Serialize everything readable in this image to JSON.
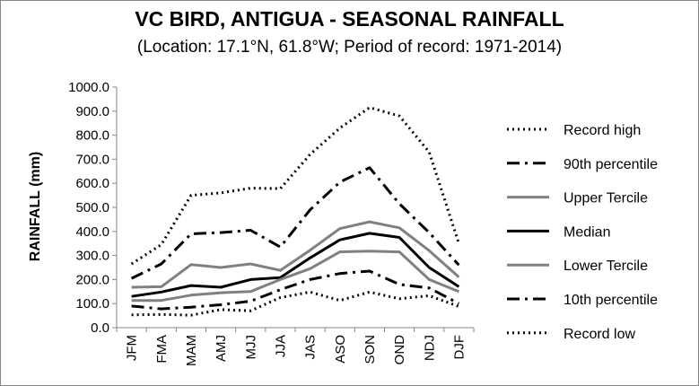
{
  "chart_data": {
    "type": "line",
    "title": "VC BIRD, ANTIGUA - SEASONAL RAINFALL",
    "subtitle": "(Location: 17.1°N, 61.8°W; Period of record: 1971-2014)",
    "ylabel": "RAINFALL (mm)",
    "xlabel": "",
    "ylim": [
      0,
      1000
    ],
    "yticks": [
      "0.0",
      "100.0",
      "200.0",
      "300.0",
      "400.0",
      "500.0",
      "600.0",
      "700.0",
      "800.0",
      "900.0",
      "1000.0"
    ],
    "categories": [
      "JFM",
      "FMA",
      "MAM",
      "AMJ",
      "MJJ",
      "JJA",
      "JAS",
      "ASO",
      "SON",
      "OND",
      "NDJ",
      "DJF"
    ],
    "grid": false,
    "legend_position": "right",
    "series": [
      {
        "name": "Record high",
        "color": "#000000",
        "style": "dotted",
        "width": 3,
        "values": [
          265,
          345,
          550,
          560,
          580,
          578,
          720,
          830,
          915,
          880,
          730,
          350
        ]
      },
      {
        "name": "90th percentile",
        "color": "#000000",
        "style": "dashdot",
        "width": 3,
        "values": [
          205,
          265,
          390,
          395,
          405,
          335,
          490,
          605,
          665,
          515,
          395,
          260
        ]
      },
      {
        "name": "Upper Tercile",
        "color": "#808080",
        "style": "solid",
        "width": 3,
        "values": [
          168,
          170,
          262,
          250,
          265,
          238,
          322,
          412,
          440,
          415,
          320,
          210
        ]
      },
      {
        "name": "Median",
        "color": "#000000",
        "style": "solid",
        "width": 3,
        "values": [
          130,
          148,
          175,
          168,
          200,
          208,
          290,
          365,
          392,
          375,
          250,
          170
        ]
      },
      {
        "name": "Lower Tercile",
        "color": "#808080",
        "style": "solid",
        "width": 3,
        "values": [
          113,
          113,
          135,
          145,
          150,
          200,
          245,
          315,
          318,
          315,
          200,
          150
        ]
      },
      {
        "name": "10th percentile",
        "color": "#000000",
        "style": "dashdot",
        "width": 3,
        "values": [
          90,
          78,
          85,
          95,
          110,
          158,
          200,
          225,
          235,
          180,
          165,
          100
        ]
      },
      {
        "name": "Record low",
        "color": "#000000",
        "style": "dotted",
        "width": 3,
        "values": [
          53,
          55,
          52,
          75,
          70,
          125,
          148,
          113,
          148,
          120,
          133,
          88
        ]
      }
    ]
  }
}
